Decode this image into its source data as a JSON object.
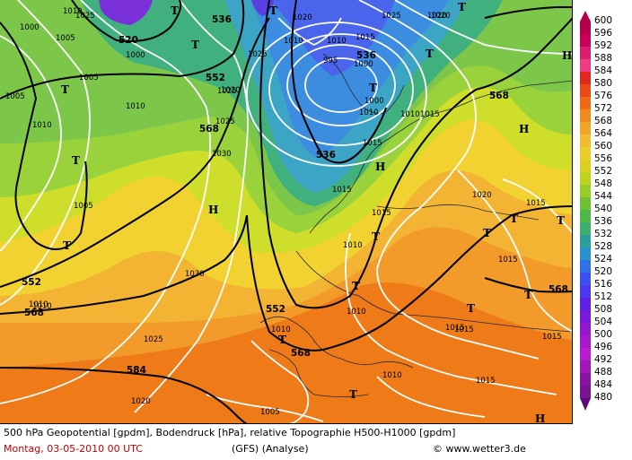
{
  "legend": {
    "values": [
      "600",
      "596",
      "592",
      "588",
      "584",
      "580",
      "576",
      "572",
      "568",
      "564",
      "560",
      "556",
      "552",
      "548",
      "544",
      "540",
      "536",
      "532",
      "528",
      "524",
      "520",
      "516",
      "512",
      "508",
      "504",
      "500",
      "496",
      "492",
      "488",
      "484",
      "480"
    ],
    "colors": [
      "#b4004b",
      "#c8005a",
      "#dc1e6e",
      "#ee3c82",
      "#e0281e",
      "#e84a1a",
      "#ee6a14",
      "#f08a1e",
      "#f0a428",
      "#f0bc32",
      "#eccc28",
      "#dcd020",
      "#bcd41e",
      "#98cc26",
      "#70c034",
      "#50b848",
      "#3cae6e",
      "#2c9e9e",
      "#2c90cc",
      "#3070e8",
      "#3c50f0",
      "#4c38ee",
      "#6020e4",
      "#781ad8",
      "#9018d0",
      "#a818cc",
      "#b81cd0",
      "#a018b8",
      "#8814a0",
      "#781490",
      "#600c78"
    ]
  },
  "map": {
    "colors": {
      "orange": "#ee7a18",
      "orange_light": "#f29a2a",
      "yellow_orange": "#f2b432",
      "yellow": "#f2d230",
      "yellow_green": "#cede2a",
      "green_light": "#9ad23c",
      "green": "#7cc64a",
      "teal": "#40b07e",
      "cyan": "#3ca4c4",
      "blue": "#3c8ce0",
      "blue_dark": "#4a64ec",
      "purple": "#7a30d8"
    },
    "geopotential_labels": [
      "536",
      "520",
      "552",
      "568",
      "536",
      "552",
      "568",
      "552",
      "568",
      "568",
      "584",
      "536",
      "568"
    ],
    "pressure_labels": [
      "1010",
      "1000",
      "1000",
      "1005",
      "1010",
      "1025",
      "1020",
      "1025",
      "1010",
      "1015",
      "1000",
      "995",
      "1000",
      "1005",
      "1010",
      "1015",
      "1025",
      "1020",
      "1010",
      "1010",
      "1020",
      "1025",
      "1030",
      "1005",
      "1015",
      "1010",
      "1030",
      "1015",
      "1010",
      "1025",
      "1010",
      "1015",
      "1015",
      "1020",
      "1015",
      "1015",
      "1020",
      "1010",
      "1015",
      "1010",
      "1005",
      "1015",
      "1005",
      "1015",
      "1020",
      "1025",
      "1010",
      "1010"
    ],
    "highs": [
      "H",
      "H",
      "H",
      "H",
      "H"
    ],
    "lows": [
      "T",
      "T",
      "T",
      "T",
      "T",
      "T",
      "T",
      "T",
      "T",
      "T",
      "T",
      "T",
      "T",
      "T",
      "T",
      "T",
      "T",
      "T"
    ]
  },
  "footer": {
    "line1": "500 hPa Geopotential [gpdm], Bodendruck [hPa], relative Topographie H500-H1000 [gpdm]",
    "date": "Montag, 03-05-2010  00 UTC",
    "model": "(GFS)  (Analyse)",
    "copyright": "© www.wetter3.de"
  }
}
